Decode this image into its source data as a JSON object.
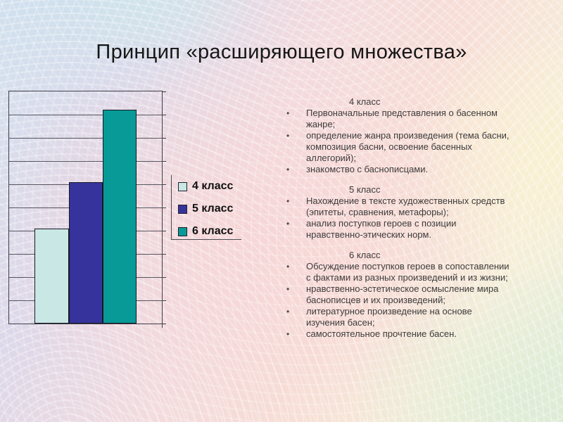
{
  "slide": {
    "title": "Принцип «расширяющего множества»"
  },
  "chart_data": {
    "type": "bar",
    "title": "",
    "xlabel": "",
    "ylabel": "",
    "categories": [
      ""
    ],
    "series": [
      {
        "name": "4 класс",
        "value": 4.1,
        "color": "#c9e7e4"
      },
      {
        "name": "5 класс",
        "value": 6.1,
        "color": "#37339c"
      },
      {
        "name": "6 класс",
        "value": 9.2,
        "color": "#089a96"
      }
    ],
    "ylim": [
      0,
      10
    ],
    "gridline_intervals": 10,
    "grid": "horizontal",
    "axis_tick_labels_visible": false,
    "legend_position": "right"
  },
  "sections": [
    {
      "heading": "4 класс",
      "bullets": [
        "Первоначальные представления о басенном жанре;",
        "определение жанра произведения (тема басни, композиция басни, освоение басенных аллегорий);",
        "знакомство с баснописцами."
      ]
    },
    {
      "heading": "5 класс",
      "bullets": [
        "Нахождение в тексте художественных средств (эпитеты, сравнения, метафоры);",
        "анализ поступков героев с позиции нравственно-этических норм."
      ]
    },
    {
      "heading": "6 класс",
      "bullets": [
        "Обсуждение поступков героев в сопоставлении с фактами из разных произведений и из жизни;",
        "нравственно-эстетическое осмысление мира баснописцев и их произведений;",
        "литературное произведение на основе изучения басен;",
        "самостоятельное прочтение басен."
      ]
    }
  ]
}
